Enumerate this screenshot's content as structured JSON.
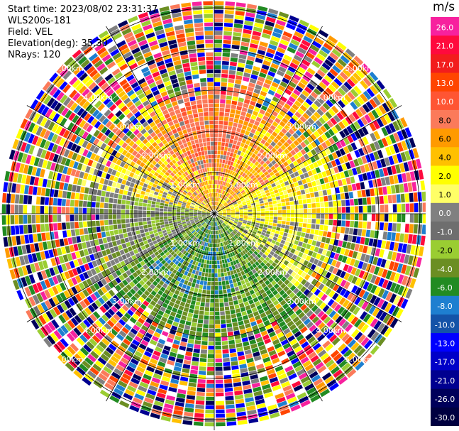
{
  "header": {
    "start_time": "Start time: 2023/08/02 23:31:37",
    "instrument": "WLS200s-181",
    "field": "Field: VEL",
    "elevation": "Elevation(deg): 35.30",
    "nrays": "NRays: 120"
  },
  "range_rings": {
    "labels": [
      "1.00km",
      "2.00km",
      "3.00km",
      "4.00km",
      "5.00km"
    ]
  },
  "colorbar": {
    "unit": "m/s",
    "levels": [
      {
        "label": "26.0",
        "color": "#f7219e"
      },
      {
        "label": "21.0",
        "color": "#ff0a3d"
      },
      {
        "label": "17.0",
        "color": "#f21d1d"
      },
      {
        "label": "13.0",
        "color": "#ff4500"
      },
      {
        "label": "10.0",
        "color": "#ff5533"
      },
      {
        "label": "8.0",
        "color": "#fb7a5a"
      },
      {
        "label": "6.0",
        "color": "#ff9a00"
      },
      {
        "label": "4.0",
        "color": "#ffc000"
      },
      {
        "label": "2.0",
        "color": "#ffff00"
      },
      {
        "label": "1.0",
        "color": "#ffff66"
      },
      {
        "label": "0.0",
        "color": "#808080"
      },
      {
        "label": "-1.0",
        "color": "#6e6e6e"
      },
      {
        "label": "-2.0",
        "color": "#9acd32"
      },
      {
        "label": "-4.0",
        "color": "#6b8e23"
      },
      {
        "label": "-6.0",
        "color": "#228b22"
      },
      {
        "label": "-8.0",
        "color": "#1e7fd0"
      },
      {
        "label": "-10.0",
        "color": "#1453a8"
      },
      {
        "label": "-13.0",
        "color": "#0000ff"
      },
      {
        "label": "-17.0",
        "color": "#0000c8"
      },
      {
        "label": "-21.0",
        "color": "#000090"
      },
      {
        "label": "-26.0",
        "color": "#00005a"
      },
      {
        "label": "-30.0",
        "color": "#000040"
      }
    ]
  },
  "noise_palette": [
    "#f7219e",
    "#ff0a3d",
    "#ff4500",
    "#ff9a00",
    "#ffff00",
    "#ffc000",
    "#808080",
    "#9acd32",
    "#228b22",
    "#1e7fd0",
    "#0000ff",
    "#000090",
    "#00005a",
    "#fb7a5a",
    "#6b8e23",
    "#ffffff"
  ]
}
